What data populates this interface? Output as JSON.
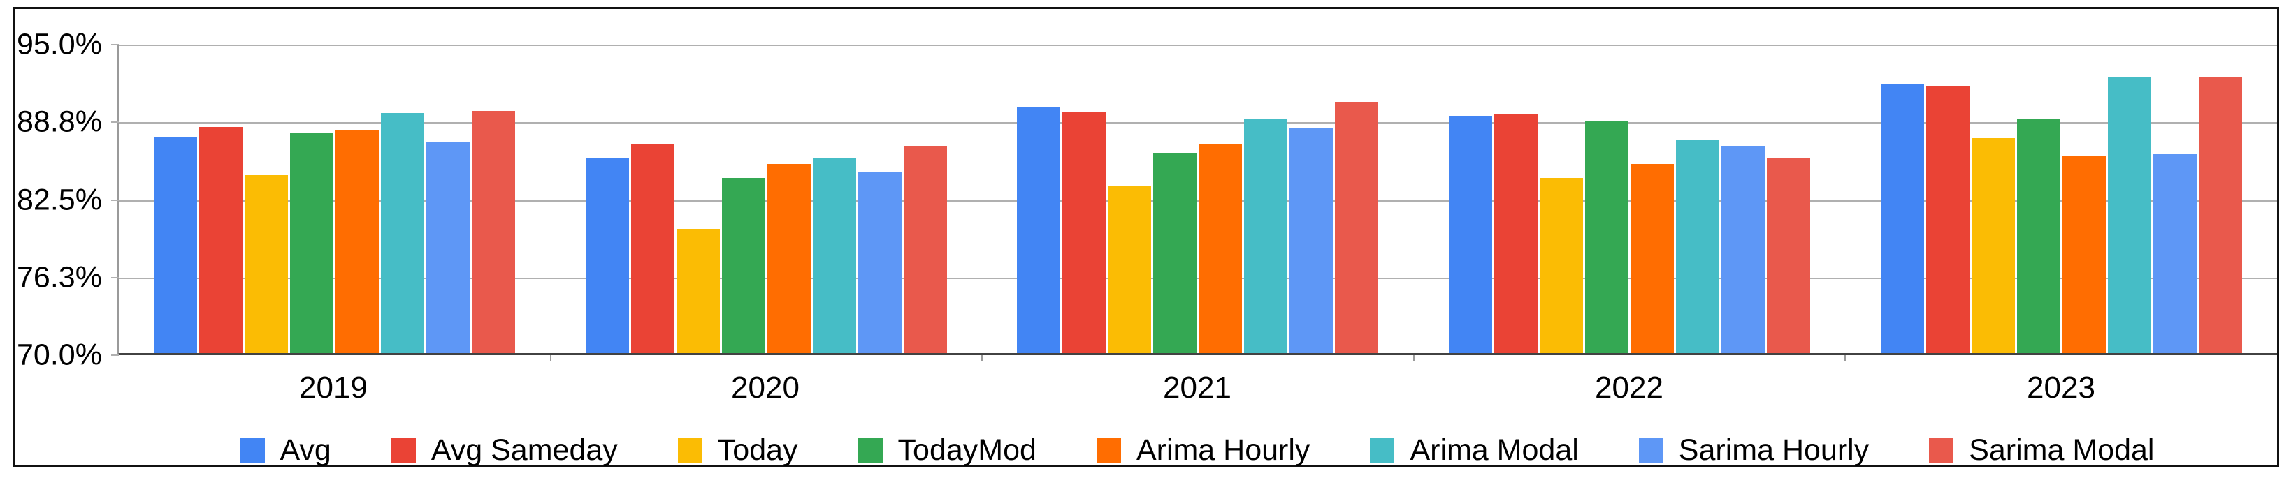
{
  "chart_data": {
    "type": "bar",
    "title": "",
    "xlabel": "",
    "ylabel": "",
    "categories": [
      "2019",
      "2020",
      "2021",
      "2022",
      "2023"
    ],
    "series": [
      {
        "name": "Avg",
        "color": "#4285F4",
        "values": [
          87.4,
          85.7,
          89.8,
          89.1,
          91.7
        ]
      },
      {
        "name": "Avg Sameday",
        "color": "#EA4335",
        "values": [
          88.2,
          86.8,
          89.4,
          89.2,
          91.5
        ]
      },
      {
        "name": "Today",
        "color": "#FBBC04",
        "values": [
          84.3,
          80.0,
          83.5,
          84.1,
          87.3
        ]
      },
      {
        "name": "TodayMod",
        "color": "#34A853",
        "values": [
          87.7,
          84.1,
          86.1,
          88.7,
          88.9
        ]
      },
      {
        "name": "Arima Hourly",
        "color": "#FF6D01",
        "values": [
          87.9,
          85.2,
          86.8,
          85.2,
          85.9
        ]
      },
      {
        "name": "Arima Modal",
        "color": "#46BDC6",
        "values": [
          89.3,
          85.7,
          88.9,
          87.2,
          92.2
        ]
      },
      {
        "name": "Sarima Hourly",
        "color": "#5E97F6",
        "values": [
          87.0,
          84.6,
          88.1,
          86.7,
          86.0
        ]
      },
      {
        "name": "Sarima Modal",
        "color": "#E9594C",
        "values": [
          89.5,
          86.7,
          90.2,
          85.7,
          92.2
        ]
      }
    ],
    "y_axis": {
      "tick_labels": [
        "95.0%",
        "88.8%",
        "82.5%",
        "76.3%",
        "70.0%"
      ],
      "min": 70,
      "max": 95,
      "format": "percent"
    },
    "ylim": [
      70,
      95
    ],
    "grid": true,
    "legend_position": "bottom",
    "colors": {
      "gridline": "#b0b0b0",
      "axis_line": "#424242",
      "frame_border": "#111111",
      "background": "#ffffff",
      "text": "#000000"
    }
  }
}
